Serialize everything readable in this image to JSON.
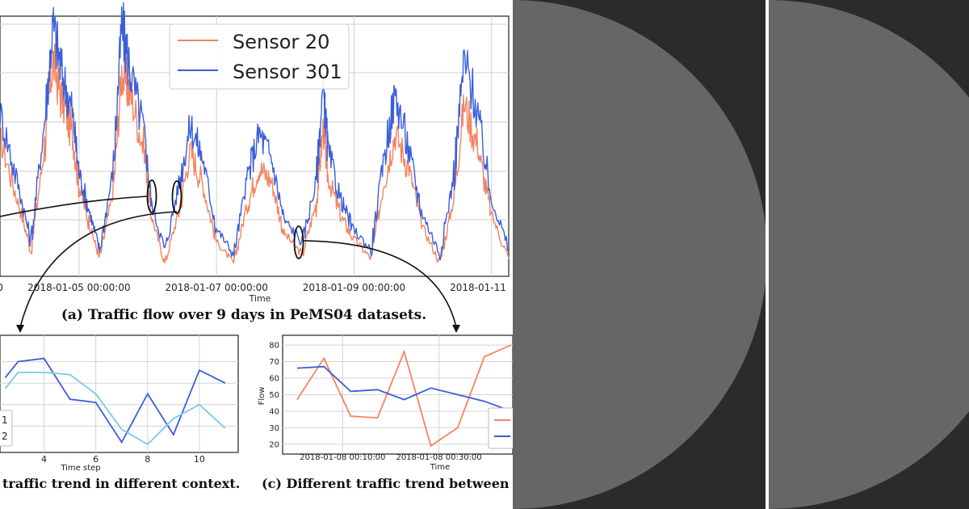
{
  "theme": {
    "sensor20_color": "#f4845f",
    "sensor301_color": "#3a5fd9",
    "light_blue": "#7cc7ea",
    "dark_panel": "#2b2b2b",
    "semi_circle": "#666666"
  },
  "chart_data": [
    {
      "id": "a",
      "type": "line",
      "title": "(a) Traffic flow over 9 days in PeMS04 datasets.",
      "xlabel": "Time",
      "ylabel": "",
      "x_ticks": [
        "2018-01-05 00:00:00",
        "2018-01-07 00:00:00",
        "2018-01-09 00:00:00",
        "2018-01-11"
      ],
      "x_range_days": [
        3.85,
        11.25
      ],
      "y_range": [
        0,
        600
      ],
      "grid": true,
      "legend": "top-center",
      "series": [
        {
          "name": "Sensor 20",
          "color": "#f4845f",
          "values": [
            [
              3.85,
              320
            ],
            [
              4.1,
              180
            ],
            [
              4.3,
              60
            ],
            [
              4.5,
              300
            ],
            [
              4.62,
              500
            ],
            [
              4.75,
              410
            ],
            [
              4.9,
              330
            ],
            [
              5.0,
              210
            ],
            [
              5.15,
              120
            ],
            [
              5.3,
              40
            ],
            [
              5.5,
              200
            ],
            [
              5.62,
              470
            ],
            [
              5.75,
              420
            ],
            [
              5.95,
              290
            ],
            [
              6.05,
              140
            ],
            [
              6.25,
              30
            ],
            [
              6.45,
              150
            ],
            [
              6.62,
              290
            ],
            [
              6.8,
              210
            ],
            [
              7.0,
              80
            ],
            [
              7.25,
              30
            ],
            [
              7.45,
              170
            ],
            [
              7.62,
              250
            ],
            [
              7.8,
              220
            ],
            [
              7.98,
              100
            ],
            [
              8.25,
              50
            ],
            [
              8.45,
              170
            ],
            [
              8.55,
              340
            ],
            [
              8.62,
              230
            ],
            [
              8.8,
              140
            ],
            [
              8.98,
              90
            ],
            [
              9.25,
              40
            ],
            [
              9.45,
              230
            ],
            [
              9.6,
              330
            ],
            [
              9.8,
              250
            ],
            [
              9.98,
              120
            ],
            [
              10.25,
              30
            ],
            [
              10.45,
              180
            ],
            [
              10.6,
              400
            ],
            [
              10.8,
              300
            ],
            [
              10.98,
              150
            ],
            [
              11.25,
              40
            ]
          ]
        },
        {
          "name": "Sensor 301",
          "color": "#3a5fd9",
          "values": [
            [
              3.85,
              380
            ],
            [
              4.1,
              220
            ],
            [
              4.3,
              80
            ],
            [
              4.5,
              360
            ],
            [
              4.62,
              580
            ],
            [
              4.75,
              470
            ],
            [
              4.9,
              380
            ],
            [
              5.0,
              240
            ],
            [
              5.15,
              150
            ],
            [
              5.3,
              60
            ],
            [
              5.5,
              250
            ],
            [
              5.62,
              580
            ],
            [
              5.75,
              470
            ],
            [
              5.95,
              330
            ],
            [
              6.05,
              170
            ],
            [
              6.25,
              60
            ],
            [
              6.45,
              210
            ],
            [
              6.62,
              350
            ],
            [
              6.8,
              270
            ],
            [
              7.0,
              110
            ],
            [
              7.25,
              50
            ],
            [
              7.45,
              230
            ],
            [
              7.62,
              330
            ],
            [
              7.8,
              270
            ],
            [
              7.98,
              130
            ],
            [
              8.25,
              80
            ],
            [
              8.45,
              220
            ],
            [
              8.55,
              440
            ],
            [
              8.62,
              290
            ],
            [
              8.8,
              180
            ],
            [
              8.98,
              110
            ],
            [
              9.25,
              60
            ],
            [
              9.45,
              290
            ],
            [
              9.6,
              420
            ],
            [
              9.8,
              290
            ],
            [
              9.98,
              150
            ],
            [
              10.25,
              50
            ],
            [
              10.45,
              230
            ],
            [
              10.6,
              500
            ],
            [
              10.8,
              380
            ],
            [
              10.98,
              190
            ],
            [
              11.25,
              60
            ]
          ]
        }
      ]
    },
    {
      "id": "b",
      "type": "line",
      "title": "traffic trend in different context.",
      "xlabel": "Time step",
      "x_ticks": [
        "4",
        "6",
        "8",
        "10"
      ],
      "x_range": [
        2.3,
        11.5
      ],
      "y_range": [
        0,
        100
      ],
      "grid": true,
      "legend_entries": [
        "1",
        "2"
      ],
      "series": [
        {
          "name": "",
          "color": "#3a5fd9",
          "values": [
            [
              2.5,
              65
            ],
            [
              3,
              80
            ],
            [
              4,
              83
            ],
            [
              5,
              45
            ],
            [
              6,
              42
            ],
            [
              7,
              5
            ],
            [
              8,
              50
            ],
            [
              9,
              12
            ],
            [
              10,
              72
            ],
            [
              11,
              60
            ]
          ]
        },
        {
          "name": "",
          "color": "#7cc7ea",
          "values": [
            [
              2.5,
              55
            ],
            [
              3,
              70
            ],
            [
              4,
              70
            ],
            [
              5,
              68
            ],
            [
              6,
              50
            ],
            [
              7,
              17
            ],
            [
              8,
              3
            ],
            [
              9,
              27
            ],
            [
              10,
              40
            ],
            [
              11,
              18
            ]
          ]
        }
      ]
    },
    {
      "id": "c",
      "type": "line",
      "title": "(c) Different traffic trend between",
      "xlabel": "Time",
      "ylabel": "Flow",
      "y_ticks": [
        "20",
        "30",
        "40",
        "50",
        "60",
        "70",
        "80"
      ],
      "x_ticks": [
        "2018-01-08 00:10:00",
        "2018-01-08 00:30:00"
      ],
      "y_range": [
        17,
        82
      ],
      "grid": true,
      "series": [
        {
          "name": "",
          "color": "#f4845f",
          "values": [
            [
              0,
              47
            ],
            [
              1,
              72
            ],
            [
              2,
              37
            ],
            [
              3,
              36
            ],
            [
              4,
              76
            ],
            [
              5,
              19
            ],
            [
              6,
              30
            ],
            [
              7,
              73
            ],
            [
              8,
              80
            ]
          ]
        },
        {
          "name": "",
          "color": "#3a5fd9",
          "values": [
            [
              0,
              66
            ],
            [
              1,
              67
            ],
            [
              2,
              52
            ],
            [
              3,
              53
            ],
            [
              4,
              47
            ],
            [
              5,
              54
            ],
            [
              6,
              50
            ],
            [
              7,
              46
            ],
            [
              8,
              40
            ]
          ]
        }
      ]
    }
  ]
}
